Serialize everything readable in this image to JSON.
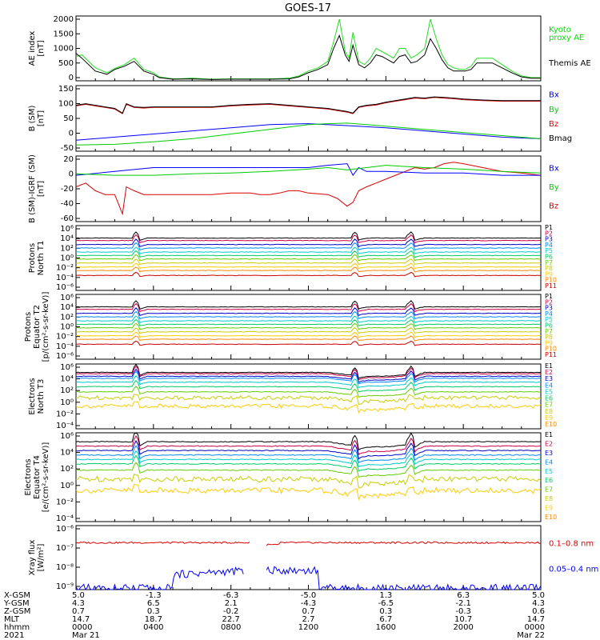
{
  "title": "GOES-17",
  "panels": [
    {
      "id": "ae",
      "ylabel": [
        "AE index",
        "[nT]"
      ],
      "ylim": [
        0,
        2000
      ],
      "yticks": [
        "2000",
        "1500",
        "1000",
        "500",
        "0"
      ],
      "legend": [
        {
          "text": "Kyoto",
          "color": "#00e000"
        },
        {
          "text": "proxy AE",
          "color": "#00e000"
        },
        {
          "text": "Themis AE",
          "color": "#000000"
        }
      ],
      "series": [
        {
          "name": "Kyoto proxy AE",
          "color": "#22dd22",
          "x": [
            0,
            0.3,
            1,
            1.6,
            2,
            2.5,
            3,
            3.5,
            4,
            4.3,
            5,
            6,
            7,
            8,
            9,
            10,
            11,
            11.5,
            12,
            12.5,
            13,
            13.3,
            13.6,
            13.9,
            14.1,
            14.3,
            14.6,
            14.9,
            15.2,
            15.5,
            15.8,
            16.1,
            16.4,
            16.7,
            17,
            17.3,
            17.6,
            18,
            18.3,
            18.6,
            18.9,
            19.2,
            19.5,
            19.8,
            20.1,
            20.4,
            20.7,
            21,
            21.5,
            22,
            22.5,
            23,
            23.5,
            24
          ],
          "y": [
            750,
            800,
            400,
            250,
            380,
            500,
            700,
            350,
            250,
            120,
            60,
            80,
            50,
            60,
            60,
            60,
            80,
            150,
            300,
            400,
            600,
            1200,
            1900,
            900,
            700,
            1500,
            600,
            500,
            700,
            1000,
            900,
            800,
            700,
            1000,
            1000,
            700,
            800,
            1000,
            1900,
            1300,
            800,
            500,
            400,
            350,
            350,
            450,
            700,
            700,
            700,
            500,
            300,
            150,
            100,
            100
          ]
        },
        {
          "name": "Themis AE",
          "color": "#000000",
          "x": [
            0,
            0.3,
            1,
            1.6,
            2,
            2.5,
            3,
            3.5,
            4,
            4.3,
            5,
            6,
            7,
            8,
            9,
            10,
            11,
            11.5,
            12,
            12.5,
            13,
            13.3,
            13.6,
            13.9,
            14.1,
            14.3,
            14.6,
            14.9,
            15.2,
            15.5,
            15.8,
            16.1,
            16.4,
            16.7,
            17,
            17.3,
            17.6,
            18,
            18.3,
            18.6,
            18.9,
            19.2,
            19.5,
            19.8,
            20.1,
            20.4,
            20.7,
            21,
            21.5,
            22,
            22.5,
            23,
            23.5,
            24
          ],
          "y": [
            850,
            700,
            300,
            200,
            350,
            450,
            600,
            300,
            200,
            100,
            50,
            60,
            40,
            50,
            50,
            50,
            60,
            120,
            250,
            350,
            500,
            1000,
            1400,
            800,
            600,
            1100,
            500,
            400,
            550,
            800,
            750,
            650,
            550,
            750,
            800,
            550,
            600,
            800,
            1300,
            1000,
            650,
            400,
            300,
            300,
            300,
            350,
            550,
            550,
            550,
            400,
            250,
            120,
            80,
            80
          ]
        }
      ]
    },
    {
      "id": "bsm",
      "ylabel": [
        "B (SM)",
        "[nT]"
      ],
      "ylim": [
        -60,
        150
      ],
      "yticks": [
        "150",
        "100",
        "50",
        "0",
        "-50"
      ],
      "legend": [
        {
          "text": "Bx",
          "color": "#0000ff"
        },
        {
          "text": "By",
          "color": "#00cc00"
        },
        {
          "text": "Bz",
          "color": "#dd0000"
        },
        {
          "text": "Bmag",
          "color": "#000000"
        }
      ],
      "series": [
        {
          "name": "Bz",
          "color": "#dd0000",
          "x": [
            0,
            0.5,
            1,
            1.5,
            2,
            2.4,
            2.6,
            3,
            3.5,
            4,
            5,
            6,
            7,
            8,
            9,
            10,
            11,
            12,
            13,
            13.5,
            14,
            14.3,
            14.6,
            15,
            15.5,
            16,
            16.5,
            17,
            17.5,
            18,
            18.5,
            19,
            19.5,
            20,
            21,
            22,
            23,
            24
          ],
          "y": [
            85,
            90,
            85,
            80,
            75,
            60,
            90,
            80,
            78,
            80,
            80,
            80,
            80,
            85,
            88,
            90,
            85,
            80,
            75,
            70,
            65,
            60,
            80,
            85,
            88,
            95,
            100,
            105,
            110,
            108,
            112,
            110,
            108,
            105,
            102,
            100,
            100,
            100
          ]
        },
        {
          "name": "Bmag",
          "color": "#000000",
          "x": [
            0,
            0.5,
            1,
            1.5,
            2,
            2.4,
            2.6,
            3,
            3.5,
            4,
            5,
            6,
            7,
            8,
            9,
            10,
            11,
            12,
            13,
            13.5,
            14,
            14.3,
            14.6,
            15,
            15.5,
            16,
            16.5,
            17,
            17.5,
            18,
            18.5,
            19,
            19.5,
            20,
            21,
            22,
            23,
            24
          ],
          "y": [
            87,
            92,
            87,
            82,
            77,
            62,
            92,
            82,
            80,
            82,
            82,
            82,
            82,
            87,
            90,
            92,
            87,
            82,
            77,
            72,
            67,
            62,
            82,
            87,
            90,
            97,
            102,
            107,
            112,
            110,
            114,
            112,
            110,
            107,
            104,
            102,
            102,
            102
          ]
        },
        {
          "name": "Bx",
          "color": "#0000ff",
          "x": [
            0,
            2,
            4,
            6,
            8,
            10,
            12,
            14,
            16,
            18,
            20,
            22,
            24
          ],
          "y": [
            -25,
            -15,
            -5,
            5,
            15,
            25,
            28,
            22,
            15,
            5,
            -5,
            -15,
            -20
          ]
        },
        {
          "name": "By",
          "color": "#00cc00",
          "x": [
            0,
            2,
            4,
            6,
            8,
            10,
            12,
            13,
            14,
            15,
            16,
            18,
            20,
            22,
            24
          ],
          "y": [
            -40,
            -38,
            -30,
            -20,
            -5,
            10,
            25,
            28,
            30,
            25,
            20,
            10,
            0,
            -10,
            -20
          ]
        }
      ]
    },
    {
      "id": "bigrf",
      "ylabel": [
        "B (SM)-IGRF (SM)",
        "[nT]"
      ],
      "ylim": [
        -65,
        20
      ],
      "yticks": [
        "20",
        "0",
        "-20",
        "-40",
        "-60"
      ],
      "legend": [
        {
          "text": "Bx",
          "color": "#0000ff"
        },
        {
          "text": "By",
          "color": "#00cc00"
        },
        {
          "text": "Bz",
          "color": "#dd0000"
        }
      ],
      "series": [
        {
          "name": "Bz",
          "color": "#dd0000",
          "x": [
            0,
            0.5,
            1,
            1.5,
            2,
            2.4,
            2.6,
            3,
            3.5,
            4,
            5,
            6,
            7,
            8,
            9,
            9.5,
            10,
            10.5,
            11,
            11.5,
            12,
            13,
            13.5,
            14,
            14.3,
            14.6,
            15,
            15.5,
            16,
            16.5,
            17,
            17.5,
            18,
            18.5,
            19,
            19.5,
            20,
            21,
            22,
            23,
            24
          ],
          "y": [
            -20,
            -15,
            -25,
            -30,
            -30,
            -55,
            -20,
            -25,
            -30,
            -30,
            -30,
            -30,
            -30,
            -28,
            -28,
            -30,
            -30,
            -28,
            -25,
            -25,
            -28,
            -30,
            -35,
            -45,
            -40,
            -25,
            -20,
            -15,
            -10,
            -5,
            0,
            5,
            3,
            5,
            10,
            12,
            10,
            5,
            0,
            -2,
            -5
          ]
        },
        {
          "name": "Bx",
          "color": "#0000ff",
          "x": [
            0,
            2,
            4,
            6,
            8,
            10,
            12,
            13,
            14,
            14.3,
            14.6,
            15,
            16,
            18,
            20,
            22,
            24
          ],
          "y": [
            -5,
            0,
            5,
            5,
            5,
            5,
            5,
            8,
            10,
            -5,
            5,
            0,
            0,
            -2,
            -2,
            -5,
            -5
          ]
        },
        {
          "name": "By",
          "color": "#00cc00",
          "x": [
            0,
            2,
            4,
            6,
            8,
            10,
            12,
            13,
            14,
            15,
            16,
            18,
            20,
            22,
            24
          ],
          "y": [
            -3,
            -5,
            -5,
            -3,
            -2,
            0,
            3,
            5,
            2,
            5,
            8,
            5,
            3,
            0,
            -2
          ]
        }
      ]
    },
    {
      "id": "pn",
      "ylabel": [
        "Protons",
        "North T1"
      ],
      "ylim": [
        -7,
        6
      ],
      "yticks": [
        "10⁶",
        "10⁴",
        "10²",
        "10⁰",
        "10⁻²",
        "10⁻⁴",
        "10⁻⁶"
      ],
      "channels": [
        "P1",
        "P2",
        "P3",
        "P4",
        "P5",
        "P6",
        "P7",
        "P8",
        "P9",
        "P10",
        "P11"
      ],
      "levels": [
        3.5,
        3,
        2.2,
        1.5,
        0.7,
        0,
        -0.7,
        -1.5,
        -2.3,
        -3,
        -4
      ]
    },
    {
      "id": "pe",
      "ylabel": [
        "Protons",
        "Equator T2",
        "[p/(cm²-s-sr-keV)]"
      ],
      "ylim": [
        -7,
        6
      ],
      "yticks": [
        "10⁶",
        "10⁴",
        "10²",
        "10⁰",
        "10⁻²",
        "10⁻⁴",
        "10⁻⁶"
      ],
      "channels": [
        "P1",
        "P2",
        "P3",
        "P4",
        "P5",
        "P6",
        "P7",
        "P8",
        "P9",
        "P10",
        "P11"
      ],
      "levels": [
        3.5,
        3,
        2.2,
        1.5,
        0.7,
        0,
        -0.7,
        -1.5,
        -2.3,
        -3,
        -4
      ]
    },
    {
      "id": "en",
      "ylabel": [
        "Electrons",
        "North T3"
      ],
      "ylim": [
        -4,
        6
      ],
      "yticks": [
        "10⁶",
        "10⁴",
        "10²",
        "10⁰",
        "10⁻²",
        "10⁻⁴"
      ],
      "channels": [
        "E1",
        "E2",
        "E3",
        "E4",
        "E5",
        "E6",
        "E7",
        "E8",
        "E9",
        "E10"
      ],
      "levels": [
        4.7,
        4.5,
        4.1,
        3.8,
        3.2,
        2.5,
        1.7,
        0.8,
        -0.5,
        -99
      ]
    },
    {
      "id": "ee",
      "ylabel": [
        "Electrons",
        "Equator T4",
        "[e/(cm²-s-sr-keV)]"
      ],
      "ylim": [
        -4,
        6
      ],
      "yticks": [
        "10⁶",
        "10⁴",
        "10²",
        "10⁰",
        "10⁻²",
        "10⁻⁴"
      ],
      "channels": [
        "E1",
        "E2",
        "E3",
        "E4",
        "E5",
        "E6",
        "E7",
        "E8",
        "E9",
        "E10"
      ],
      "levels": [
        5,
        4.5,
        4,
        3.5,
        3,
        2.5,
        1.8,
        0.8,
        -0.5,
        -99
      ]
    },
    {
      "id": "xr",
      "ylabel": [
        "Xray flux",
        "[W/m²]"
      ],
      "ylim": [
        -9,
        -6
      ],
      "yticks": [
        "10⁻⁶",
        "10⁻⁷",
        "10⁻⁸",
        "10⁻⁹"
      ],
      "legend": [
        {
          "text": "0.1–0.8 nm",
          "color": "#dd0000"
        },
        {
          "text": "0.05–0.4 nm",
          "color": "#0000ff"
        }
      ]
    }
  ],
  "footer": {
    "row_labels": [
      "X-GSM",
      "Y-GSM",
      "Z-GSM",
      "MLT",
      "hhmm",
      "2021"
    ],
    "columns": [
      {
        "values": [
          "5.0",
          "4.3",
          "0.7",
          "14.7",
          "0000",
          "Mar 21"
        ]
      },
      {
        "values": [
          "-1.3",
          "6.5",
          "0.3",
          "18.7",
          "0400",
          ""
        ]
      },
      {
        "values": [
          "-6.3",
          "2.1",
          "-0.2",
          "22.7",
          "0800",
          ""
        ]
      },
      {
        "values": [
          "-5.0",
          "-4.3",
          "0.7",
          "2.7",
          "1200",
          ""
        ]
      },
      {
        "values": [
          "1.3",
          "-6.5",
          "0.3",
          "6.7",
          "1600",
          ""
        ]
      },
      {
        "values": [
          "6.3",
          "-2.1",
          "-0.3",
          "10.7",
          "2000",
          ""
        ]
      },
      {
        "values": [
          "5.0",
          "4.3",
          "0.6",
          "14.7",
          "0000",
          "Mar 22"
        ]
      }
    ]
  },
  "chart_data": [
    {
      "type": "line",
      "title": "GOES-17",
      "ylabel": "AE index [nT]",
      "ylim": [
        0,
        2000
      ],
      "x_unit": "hours from 2021 Mar 21 0000",
      "xlim": [
        0,
        24
      ]
    },
    {
      "type": "line",
      "ylabel": "B (SM) [nT]",
      "ylim": [
        -60,
        150
      ],
      "legend": [
        "Bx",
        "By",
        "Bz",
        "Bmag"
      ]
    },
    {
      "type": "line",
      "ylabel": "B (SM)-IGRF (SM) [nT]",
      "ylim": [
        -65,
        20
      ],
      "legend": [
        "Bx",
        "By",
        "Bz"
      ]
    },
    {
      "type": "line",
      "ylabel": "Protons North T1",
      "yscale": "log"
    },
    {
      "type": "line",
      "ylabel": "Protons Equator T2 [p/(cm²-s-sr-keV)]",
      "yscale": "log"
    },
    {
      "type": "line",
      "ylabel": "Electrons North T3",
      "yscale": "log"
    },
    {
      "type": "line",
      "ylabel": "Electrons Equator T4 [e/(cm²-s-sr-keV)]",
      "yscale": "log"
    },
    {
      "type": "line",
      "ylabel": "Xray flux [W/m²]",
      "yscale": "log",
      "legend": [
        "0.1–0.8 nm",
        "0.05–0.4 nm"
      ]
    }
  ]
}
